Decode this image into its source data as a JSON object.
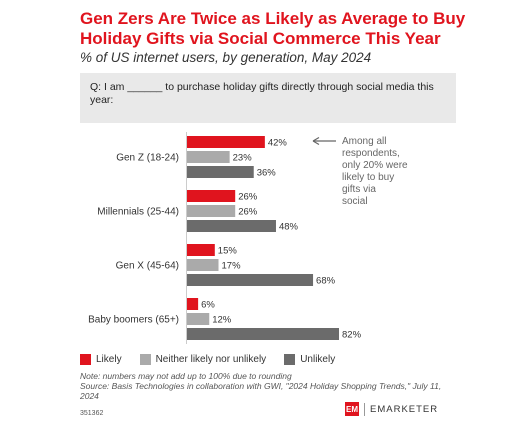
{
  "title": "Gen Zers Are Twice as Likely as Average to Buy Holiday Gifts via Social Commerce This Year",
  "subtitle": "% of US internet users, by generation, May 2024",
  "question": "Q: I am ______ to purchase holiday gifts directly through social media this year:",
  "annotation": "Among all respondents, only 20% were likely to buy gifts via social",
  "chart_data": {
    "type": "bar",
    "orientation": "horizontal",
    "categories": [
      "Gen Z (18-24)",
      "Millennials (25-44)",
      "Gen X (45-64)",
      "Baby boomers (65+)"
    ],
    "series": [
      {
        "name": "Likely",
        "values": [
          42,
          26,
          15,
          6
        ],
        "color": "#e0141e"
      },
      {
        "name": "Neither likely nor unlikely",
        "values": [
          23,
          26,
          17,
          12
        ],
        "color": "#aaaaaa"
      },
      {
        "name": "Unlikely",
        "values": [
          36,
          48,
          68,
          82
        ],
        "color": "#6b6b6b"
      }
    ],
    "value_suffix": "%",
    "xlim": [
      0,
      82
    ],
    "grid": false,
    "legend_position": "bottom"
  },
  "notes": [
    "Note: numbers may not add up to 100% due to rounding",
    "Source: Basis Technologies in collaboration with GWI, \"2024 Holiday Shopping Trends,\" July 11, 2024"
  ],
  "footer_id": "351362",
  "brand": {
    "mark": "EM",
    "name": "EMARKETER"
  }
}
